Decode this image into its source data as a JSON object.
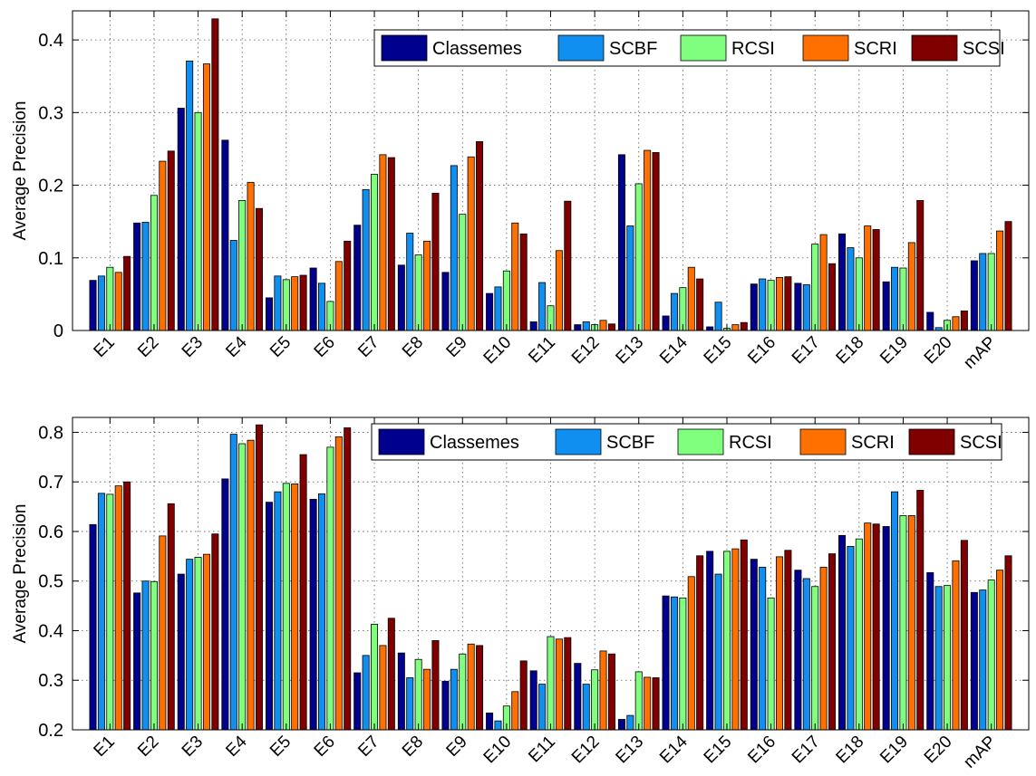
{
  "chart_data": [
    {
      "type": "bar",
      "title": "",
      "xlabel": "",
      "ylabel": "Average Precision",
      "ylim": [
        0,
        0.44
      ],
      "yticks": [
        0,
        0.1,
        0.2,
        0.3,
        0.4
      ],
      "ytick_labels": [
        "0",
        "0.1",
        "0.2",
        "0.3",
        "0.4"
      ],
      "grid": true,
      "legend_position": "top-right",
      "categories": [
        "E1",
        "E2",
        "E3",
        "E4",
        "E5",
        "E6",
        "E7",
        "E8",
        "E9",
        "E10",
        "E11",
        "E12",
        "E13",
        "E14",
        "E15",
        "E16",
        "E17",
        "E18",
        "E19",
        "E20",
        "mAP"
      ],
      "series": [
        {
          "name": "Classemes",
          "color": "#00008f",
          "values": [
            0.069,
            0.148,
            0.306,
            0.262,
            0.045,
            0.086,
            0.145,
            0.09,
            0.08,
            0.051,
            0.012,
            0.008,
            0.242,
            0.02,
            0.005,
            0.064,
            0.065,
            0.133,
            0.067,
            0.025,
            0.096
          ]
        },
        {
          "name": "SCBF",
          "color": "#108ff0",
          "values": [
            0.075,
            0.149,
            0.371,
            0.124,
            0.075,
            0.065,
            0.194,
            0.134,
            0.227,
            0.06,
            0.066,
            0.012,
            0.144,
            0.051,
            0.039,
            0.071,
            0.063,
            0.114,
            0.087,
            0.004,
            0.106
          ]
        },
        {
          "name": "RCSI",
          "color": "#80ff7f",
          "values": [
            0.087,
            0.186,
            0.3,
            0.179,
            0.07,
            0.04,
            0.215,
            0.104,
            0.16,
            0.082,
            0.034,
            0.008,
            0.202,
            0.059,
            0.003,
            0.069,
            0.119,
            0.1,
            0.086,
            0.014,
            0.106
          ]
        },
        {
          "name": "SCRI",
          "color": "#ff7000",
          "values": [
            0.08,
            0.233,
            0.367,
            0.204,
            0.074,
            0.095,
            0.242,
            0.123,
            0.239,
            0.148,
            0.11,
            0.014,
            0.248,
            0.087,
            0.008,
            0.073,
            0.132,
            0.144,
            0.121,
            0.019,
            0.137
          ]
        },
        {
          "name": "SCSI",
          "color": "#800000",
          "values": [
            0.102,
            0.247,
            0.429,
            0.168,
            0.076,
            0.123,
            0.238,
            0.189,
            0.26,
            0.133,
            0.178,
            0.009,
            0.245,
            0.071,
            0.011,
            0.074,
            0.092,
            0.139,
            0.179,
            0.027,
            0.15
          ]
        }
      ]
    },
    {
      "type": "bar",
      "title": "",
      "xlabel": "",
      "ylabel": "Average Precision",
      "ylim": [
        0.2,
        0.83
      ],
      "yticks": [
        0.2,
        0.3,
        0.4,
        0.5,
        0.6,
        0.7,
        0.8
      ],
      "ytick_labels": [
        "0.2",
        "0.3",
        "0.4",
        "0.5",
        "0.6",
        "0.7",
        "0.8"
      ],
      "grid": true,
      "legend_position": "top-right",
      "categories": [
        "E1",
        "E2",
        "E3",
        "E4",
        "E5",
        "E6",
        "E7",
        "E8",
        "E9",
        "E10",
        "E11",
        "E12",
        "E13",
        "E14",
        "E15",
        "E16",
        "E17",
        "E18",
        "E19",
        "E20",
        "mAP"
      ],
      "series": [
        {
          "name": "Classemes",
          "color": "#00008f",
          "values": [
            0.614,
            0.476,
            0.514,
            0.706,
            0.659,
            0.665,
            0.315,
            0.355,
            0.298,
            0.234,
            0.319,
            0.334,
            0.221,
            0.47,
            0.56,
            0.544,
            0.522,
            0.592,
            0.61,
            0.517,
            0.477
          ]
        },
        {
          "name": "SCBF",
          "color": "#108ff0",
          "values": [
            0.677,
            0.5,
            0.544,
            0.796,
            0.68,
            0.676,
            0.35,
            0.305,
            0.322,
            0.218,
            0.292,
            0.292,
            0.229,
            0.468,
            0.514,
            0.528,
            0.505,
            0.57,
            0.68,
            0.489,
            0.482
          ]
        },
        {
          "name": "RCSI",
          "color": "#80ff7f",
          "values": [
            0.675,
            0.499,
            0.548,
            0.777,
            0.697,
            0.77,
            0.413,
            0.342,
            0.353,
            0.248,
            0.388,
            0.321,
            0.317,
            0.466,
            0.56,
            0.466,
            0.489,
            0.585,
            0.632,
            0.491,
            0.502
          ]
        },
        {
          "name": "SCRI",
          "color": "#ff7000",
          "values": [
            0.692,
            0.591,
            0.554,
            0.784,
            0.696,
            0.791,
            0.37,
            0.322,
            0.373,
            0.277,
            0.383,
            0.359,
            0.306,
            0.509,
            0.565,
            0.549,
            0.528,
            0.617,
            0.632,
            0.541,
            0.522
          ]
        },
        {
          "name": "SCSI",
          "color": "#800000",
          "values": [
            0.7,
            0.656,
            0.595,
            0.815,
            0.755,
            0.809,
            0.425,
            0.38,
            0.37,
            0.339,
            0.386,
            0.353,
            0.305,
            0.551,
            0.583,
            0.562,
            0.555,
            0.615,
            0.683,
            0.582,
            0.551
          ]
        }
      ]
    }
  ]
}
